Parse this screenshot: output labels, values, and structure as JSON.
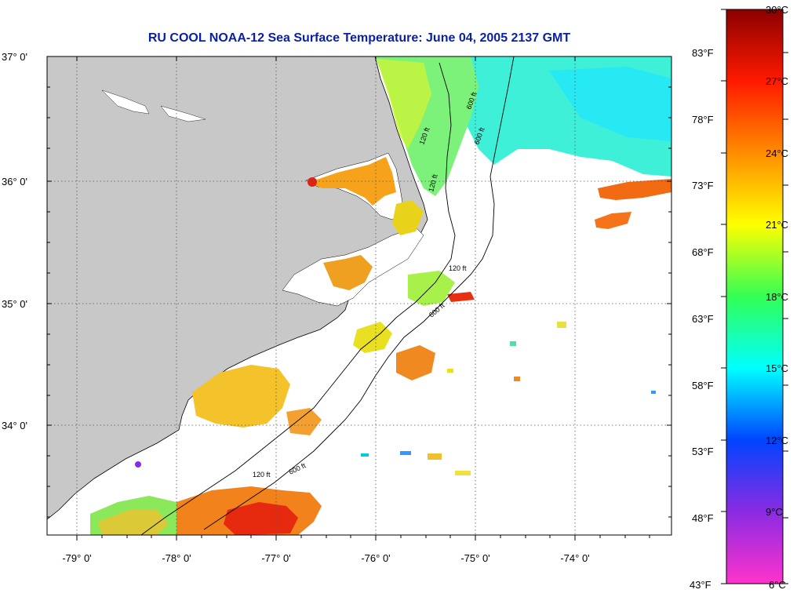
{
  "title": "RU COOL  NOAA-12  Sea Surface Temperature:  June 04, 2005 2137 GMT",
  "map": {
    "lat_labels": [
      "37° 0'",
      "36° 0'",
      "35° 0'",
      "34° 0'"
    ],
    "lon_labels": [
      "-79° 0'",
      "-78° 0'",
      "-77° 0'",
      "-76° 0'",
      "-75° 0'",
      "-74° 0'"
    ],
    "contour_labels": [
      "120 ft",
      "600 ft",
      "120 ft",
      "600 ft",
      "120 ft",
      "600 ft",
      "120 ft",
      "600 ft"
    ],
    "land_color": "#c8c8c8",
    "cloud_color": "#ffffff"
  },
  "colorbar": {
    "celsius_labels": [
      "30°C",
      "27°C",
      "24°C",
      "21°C",
      "18°C",
      "15°C",
      "12°C",
      "9°C",
      "6°C"
    ],
    "fahrenheit_labels": [
      "83°F",
      "78°F",
      "73°F",
      "68°F",
      "63°F",
      "58°F",
      "53°F",
      "48°F",
      "43°F"
    ],
    "colors": [
      "#8b0000",
      "#ff0000",
      "#ff8c00",
      "#ffff00",
      "#00ff40",
      "#00ffff",
      "#0000ff",
      "#8a2be2",
      "#ff00ff"
    ]
  }
}
